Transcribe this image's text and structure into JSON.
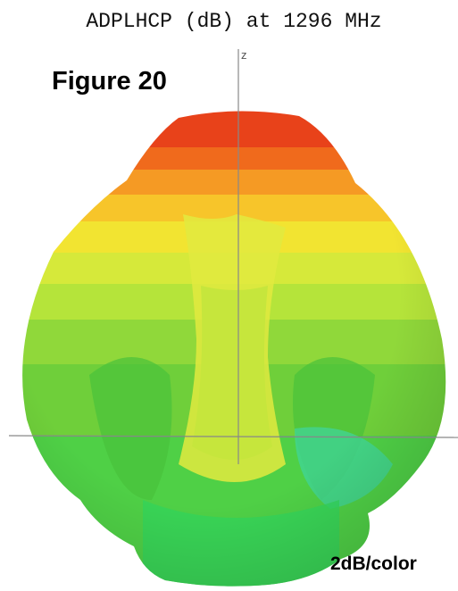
{
  "title": "ADPLHCP (dB) at 1296 MHz",
  "figure_label": "Figure 20",
  "axis_label": "z",
  "scale_note": "2dB/color"
}
